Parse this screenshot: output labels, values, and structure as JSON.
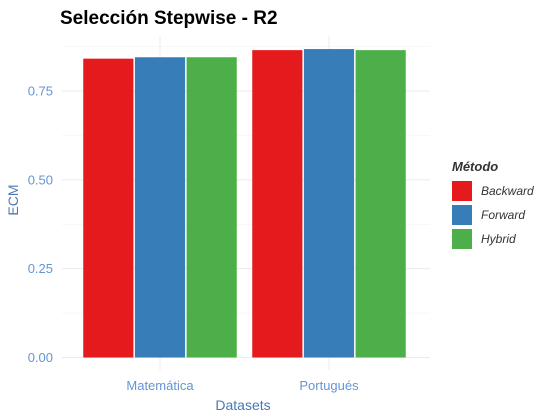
{
  "chart_data": {
    "type": "bar",
    "title": "Selección Stepwise - R2",
    "xlabel": "Datasets",
    "ylabel": "ECM",
    "categories": [
      "Matemática",
      "Portugués"
    ],
    "series": [
      {
        "name": "Backward",
        "color": "#e41a1c",
        "values": [
          0.841,
          0.865
        ]
      },
      {
        "name": "Forward",
        "color": "#377eb8",
        "values": [
          0.845,
          0.868
        ]
      },
      {
        "name": "Hybrid",
        "color": "#4daf4a",
        "values": [
          0.845,
          0.865
        ]
      }
    ],
    "yticks": [
      0.0,
      0.25,
      0.5,
      0.75
    ],
    "ytick_labels": [
      "0.00",
      "0.25",
      "0.50",
      "0.75"
    ],
    "ylim": [
      0,
      0.9
    ],
    "legend": {
      "title": "Método",
      "position": "right"
    },
    "grid": true
  }
}
